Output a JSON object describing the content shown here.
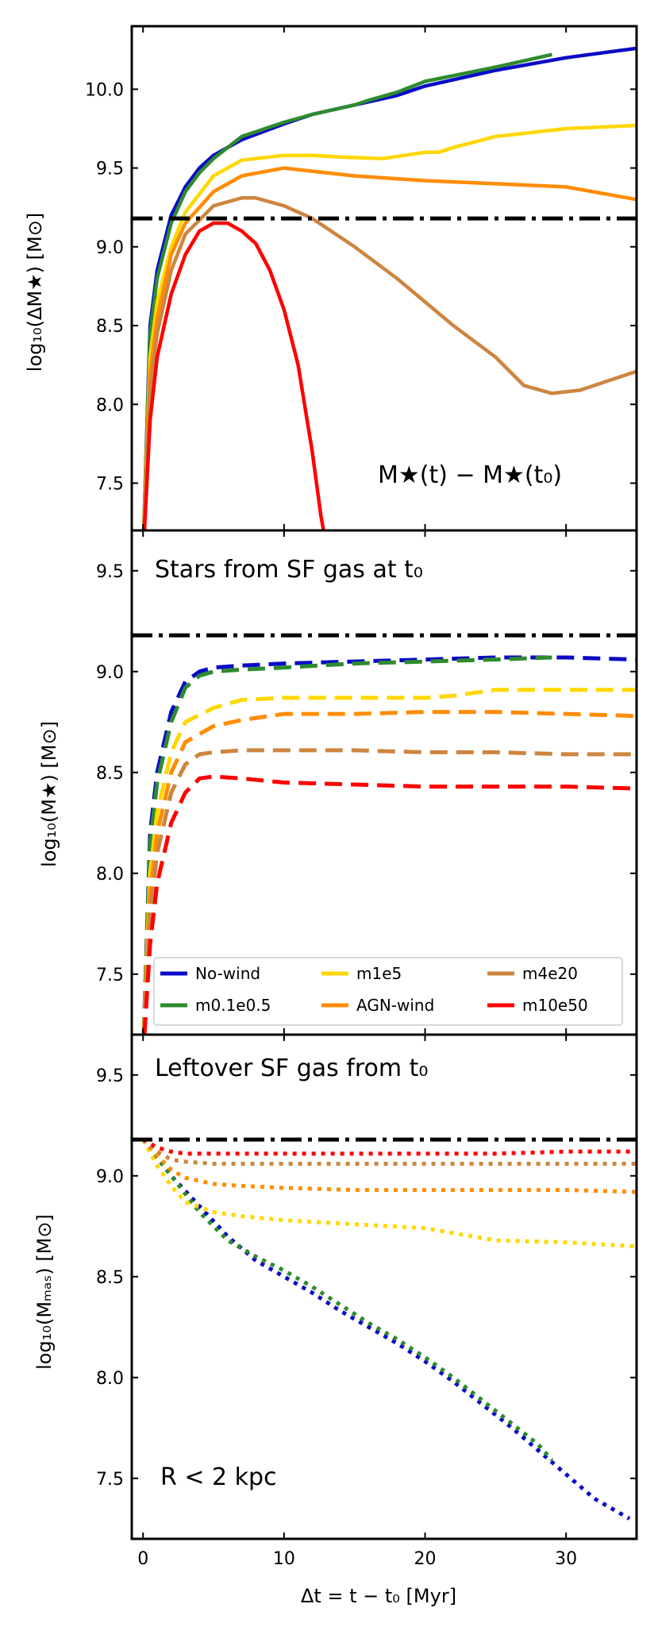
{
  "chart_data": {
    "type": "line",
    "x_label": "Δt = t − t₀ [Myr]",
    "x_range": [
      -0.8,
      35
    ],
    "x_ticks": [
      0,
      10,
      20,
      30
    ],
    "y_range": [
      7.2,
      10.4
    ],
    "y_ticks": [
      7.5,
      8.0,
      8.5,
      9.0,
      9.5,
      10.0
    ],
    "reference_line": 9.18,
    "colors": {
      "no_wind": "#0a0ac8",
      "m01e05": "#2e8b2e",
      "m1e5": "#ffd700",
      "agn_wind": "#ff8c00",
      "m4e20": "#cd853f",
      "m10e50": "#ff0000",
      "reference": "#000000"
    },
    "legend": [
      "No-wind",
      "m0.1e0.5",
      "m1e5",
      "AGN-wind",
      "m4e20",
      "m10e50"
    ],
    "panels": [
      {
        "ylabel": "log₁₀(ΔM★) [M⊙]",
        "annotation": "M★(t) − M★(t₀)",
        "y_range": [
          7.2,
          10.4
        ],
        "style": "solid",
        "series": [
          {
            "name": "No-wind",
            "x": [
              0.05,
              0.5,
              1,
              2,
              3,
              4,
              5,
              7,
              10,
              12,
              15,
              18,
              20,
              25,
              30,
              35
            ],
            "y": [
              7.2,
              8.5,
              8.85,
              9.2,
              9.38,
              9.5,
              9.58,
              9.68,
              9.78,
              9.84,
              9.9,
              9.96,
              10.02,
              10.12,
              10.2,
              10.26
            ]
          },
          {
            "name": "m0.1e0.5",
            "x": [
              0.05,
              0.5,
              1,
              2,
              3,
              4,
              5,
              7,
              10,
              12,
              15,
              16,
              18,
              20,
              25,
              29
            ],
            "y": [
              7.2,
              8.45,
              8.8,
              9.15,
              9.35,
              9.47,
              9.56,
              9.7,
              9.79,
              9.84,
              9.9,
              9.93,
              9.98,
              10.05,
              10.14,
              10.22
            ]
          },
          {
            "name": "m1e5",
            "x": [
              0.05,
              0.5,
              1,
              2,
              3,
              5,
              7,
              10,
              12,
              14,
              17,
              20,
              21,
              22,
              25,
              30,
              35
            ],
            "y": [
              7.2,
              8.3,
              8.65,
              9.0,
              9.22,
              9.45,
              9.55,
              9.58,
              9.58,
              9.57,
              9.56,
              9.6,
              9.6,
              9.63,
              9.7,
              9.75,
              9.77
            ]
          },
          {
            "name": "AGN-wind",
            "x": [
              0.05,
              0.5,
              1,
              2,
              3,
              5,
              7,
              10,
              12,
              15,
              20,
              25,
              30,
              35
            ],
            "y": [
              7.2,
              8.2,
              8.55,
              8.95,
              9.15,
              9.35,
              9.45,
              9.5,
              9.48,
              9.45,
              9.42,
              9.4,
              9.38,
              9.3
            ]
          },
          {
            "name": "m4e20",
            "x": [
              0.05,
              0.5,
              1,
              2,
              3,
              5,
              7,
              8,
              10,
              12,
              15,
              18,
              22,
              25,
              27,
              29,
              31,
              33,
              35
            ],
            "y": [
              7.2,
              8.1,
              8.45,
              8.85,
              9.08,
              9.26,
              9.31,
              9.31,
              9.26,
              9.18,
              9.0,
              8.8,
              8.5,
              8.3,
              8.12,
              8.07,
              8.09,
              8.15,
              8.21
            ]
          },
          {
            "name": "m10e50",
            "x": [
              0.1,
              0.5,
              1,
              2,
              3,
              4,
              5,
              6,
              7,
              8,
              9,
              10,
              11,
              12,
              12.6,
              12.8
            ],
            "y": [
              7.2,
              7.9,
              8.3,
              8.7,
              8.95,
              9.1,
              9.15,
              9.15,
              9.1,
              9.02,
              8.85,
              8.6,
              8.25,
              7.7,
              7.3,
              7.2
            ]
          }
        ]
      },
      {
        "ylabel": "log₁₀(M★) [M⊙]",
        "annotation": "Stars from SF gas at t₀",
        "y_range": [
          7.2,
          9.7
        ],
        "style": "dashed",
        "series": [
          {
            "name": "No-wind",
            "x": [
              0.05,
              0.5,
              1,
              2,
              3,
              4,
              5,
              7,
              10,
              15,
              20,
              25,
              30,
              35
            ],
            "y": [
              7.2,
              8.2,
              8.5,
              8.8,
              8.95,
              9.0,
              9.02,
              9.03,
              9.04,
              9.05,
              9.06,
              9.07,
              9.07,
              9.06
            ]
          },
          {
            "name": "m0.1e0.5",
            "x": [
              0.05,
              0.5,
              1,
              2,
              3,
              4,
              5,
              7,
              10,
              15,
              20,
              25,
              29
            ],
            "y": [
              7.2,
              8.15,
              8.45,
              8.75,
              8.92,
              8.98,
              9.0,
              9.01,
              9.02,
              9.04,
              9.05,
              9.06,
              9.07
            ]
          },
          {
            "name": "m1e5",
            "x": [
              0.05,
              0.5,
              1,
              2,
              3,
              5,
              7,
              10,
              15,
              20,
              22,
              25,
              30,
              35
            ],
            "y": [
              7.2,
              8.0,
              8.3,
              8.6,
              8.75,
              8.82,
              8.86,
              8.87,
              8.87,
              8.87,
              8.88,
              8.91,
              8.91,
              8.91
            ]
          },
          {
            "name": "AGN-wind",
            "x": [
              0.05,
              0.5,
              1,
              2,
              3,
              5,
              7,
              10,
              15,
              20,
              25,
              30,
              35
            ],
            "y": [
              7.2,
              7.9,
              8.2,
              8.5,
              8.65,
              8.73,
              8.76,
              8.79,
              8.79,
              8.8,
              8.8,
              8.79,
              8.78
            ]
          },
          {
            "name": "m4e20",
            "x": [
              0.05,
              0.5,
              1,
              2,
              3,
              4,
              5,
              7,
              10,
              15,
              20,
              25,
              30,
              35
            ],
            "y": [
              7.2,
              7.8,
              8.1,
              8.4,
              8.54,
              8.59,
              8.6,
              8.61,
              8.61,
              8.61,
              8.6,
              8.6,
              8.59,
              8.59
            ]
          },
          {
            "name": "m10e50",
            "x": [
              0.1,
              0.5,
              1,
              2,
              3,
              4,
              5,
              7,
              10,
              15,
              20,
              25,
              30,
              35
            ],
            "y": [
              7.2,
              7.65,
              7.95,
              8.25,
              8.4,
              8.47,
              8.48,
              8.47,
              8.45,
              8.44,
              8.43,
              8.43,
              8.43,
              8.42
            ]
          }
        ]
      },
      {
        "ylabel": "log₁₀(Mₘₐₛ) [M⊙]",
        "ylabel_main": "log",
        "annotation": "Leftover SF gas from t₀",
        "annotation2": "R < 2 kpc",
        "y_range": [
          7.2,
          9.7
        ],
        "style": "dotted",
        "series": [
          {
            "name": "No-wind",
            "x": [
              0,
              2,
              4,
              6,
              8,
              10,
              12,
              14,
              16,
              18,
              20,
              22,
              24,
              26,
              28,
              30,
              32,
              34.5
            ],
            "y": [
              9.18,
              9.0,
              8.85,
              8.7,
              8.58,
              8.5,
              8.42,
              8.33,
              8.25,
              8.17,
              8.08,
              7.98,
              7.87,
              7.76,
              7.64,
              7.52,
              7.4,
              7.3
            ]
          },
          {
            "name": "m0.1e0.5",
            "x": [
              0,
              2,
              4,
              6,
              8,
              10,
              12,
              14,
              16,
              18,
              20,
              22,
              24,
              26,
              28,
              29
            ],
            "y": [
              9.18,
              9.0,
              8.82,
              8.68,
              8.6,
              8.53,
              8.45,
              8.36,
              8.27,
              8.19,
              8.1,
              8.0,
              7.89,
              7.78,
              7.67,
              7.59
            ]
          },
          {
            "name": "m1e5",
            "x": [
              0,
              1,
              2,
              3,
              5,
              7,
              10,
              15,
              20,
              25,
              30,
              35
            ],
            "y": [
              9.18,
              9.05,
              8.95,
              8.87,
              8.82,
              8.8,
              8.78,
              8.76,
              8.74,
              8.68,
              8.67,
              8.65
            ]
          },
          {
            "name": "AGN-wind",
            "x": [
              0,
              1,
              2,
              3,
              5,
              7,
              10,
              15,
              20,
              25,
              30,
              35
            ],
            "y": [
              9.18,
              9.1,
              9.03,
              8.99,
              8.96,
              8.95,
              8.94,
              8.93,
              8.93,
              8.93,
              8.93,
              8.92
            ]
          },
          {
            "name": "m4e20",
            "x": [
              0,
              1,
              2,
              3,
              5,
              10,
              15,
              20,
              25,
              30,
              35
            ],
            "y": [
              9.18,
              9.12,
              9.08,
              9.07,
              9.06,
              9.06,
              9.06,
              9.06,
              9.06,
              9.06,
              9.06
            ]
          },
          {
            "name": "m10e50",
            "x": [
              0,
              1,
              2,
              3,
              5,
              10,
              15,
              20,
              25,
              30,
              35
            ],
            "y": [
              9.18,
              9.14,
              9.12,
              9.11,
              9.11,
              9.11,
              9.11,
              9.11,
              9.11,
              9.12,
              9.12
            ]
          }
        ]
      }
    ]
  }
}
